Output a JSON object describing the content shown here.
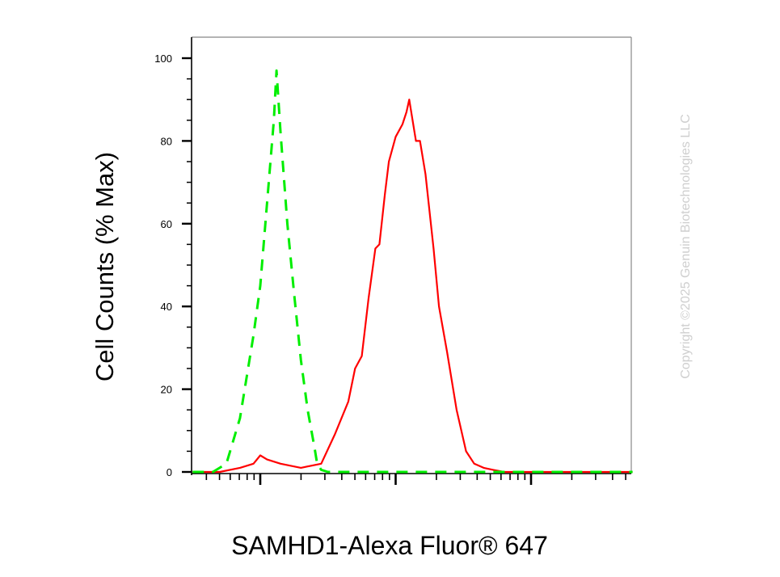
{
  "chart_data": {
    "type": "line",
    "title": "",
    "xlabel": "SAMHD1-Alexa Fluor® 647",
    "ylabel": "Cell Counts (% Max)",
    "xscale": "log",
    "xlim_decades": [
      -0.5,
      2.75
    ],
    "ylim": [
      0,
      105
    ],
    "yticks": [
      "0",
      "20",
      "40",
      "60",
      "80",
      "100"
    ],
    "grid": false,
    "series": [
      {
        "color": "#ff0000",
        "style": "solid",
        "x": [
          -0.5,
          -0.3,
          -0.15,
          -0.05,
          0.0,
          0.05,
          0.15,
          0.3,
          0.45,
          0.55,
          0.65,
          0.7,
          0.75,
          0.8,
          0.85,
          0.88,
          0.92,
          0.95,
          1.0,
          1.05,
          1.08,
          1.1,
          1.12,
          1.15,
          1.18,
          1.22,
          1.28,
          1.32,
          1.38,
          1.45,
          1.52,
          1.58,
          1.65,
          1.72,
          1.8,
          1.9,
          2.0,
          2.2,
          2.5,
          2.75
        ],
        "y": [
          0,
          0,
          1,
          2,
          4,
          3,
          2,
          1,
          2,
          9,
          17,
          25,
          28,
          42,
          54,
          55,
          67,
          75,
          81,
          84,
          87,
          90,
          86,
          80,
          80,
          72,
          54,
          40,
          29,
          15,
          5,
          2,
          1,
          0.5,
          0,
          0,
          0,
          0,
          0,
          0
        ]
      },
      {
        "color": "#00ee00",
        "style": "dashed",
        "x": [
          -0.5,
          -0.35,
          -0.25,
          -0.15,
          -0.05,
          0.0,
          0.05,
          0.1,
          0.12,
          0.15,
          0.2,
          0.25,
          0.3,
          0.35,
          0.4,
          0.42,
          0.45,
          0.5,
          0.6,
          0.8,
          1.0,
          1.5,
          2.0,
          2.75
        ],
        "y": [
          0,
          0,
          2,
          13,
          33,
          45,
          65,
          85,
          97,
          82,
          60,
          43,
          27,
          15,
          6,
          2,
          0.5,
          0,
          0,
          0,
          0,
          0,
          0,
          0
        ]
      }
    ]
  },
  "watermark": "Copyright ©2025 Genuin Biotechnologies LLC",
  "colors": {
    "frame": "#888888",
    "axis": "#000000"
  }
}
